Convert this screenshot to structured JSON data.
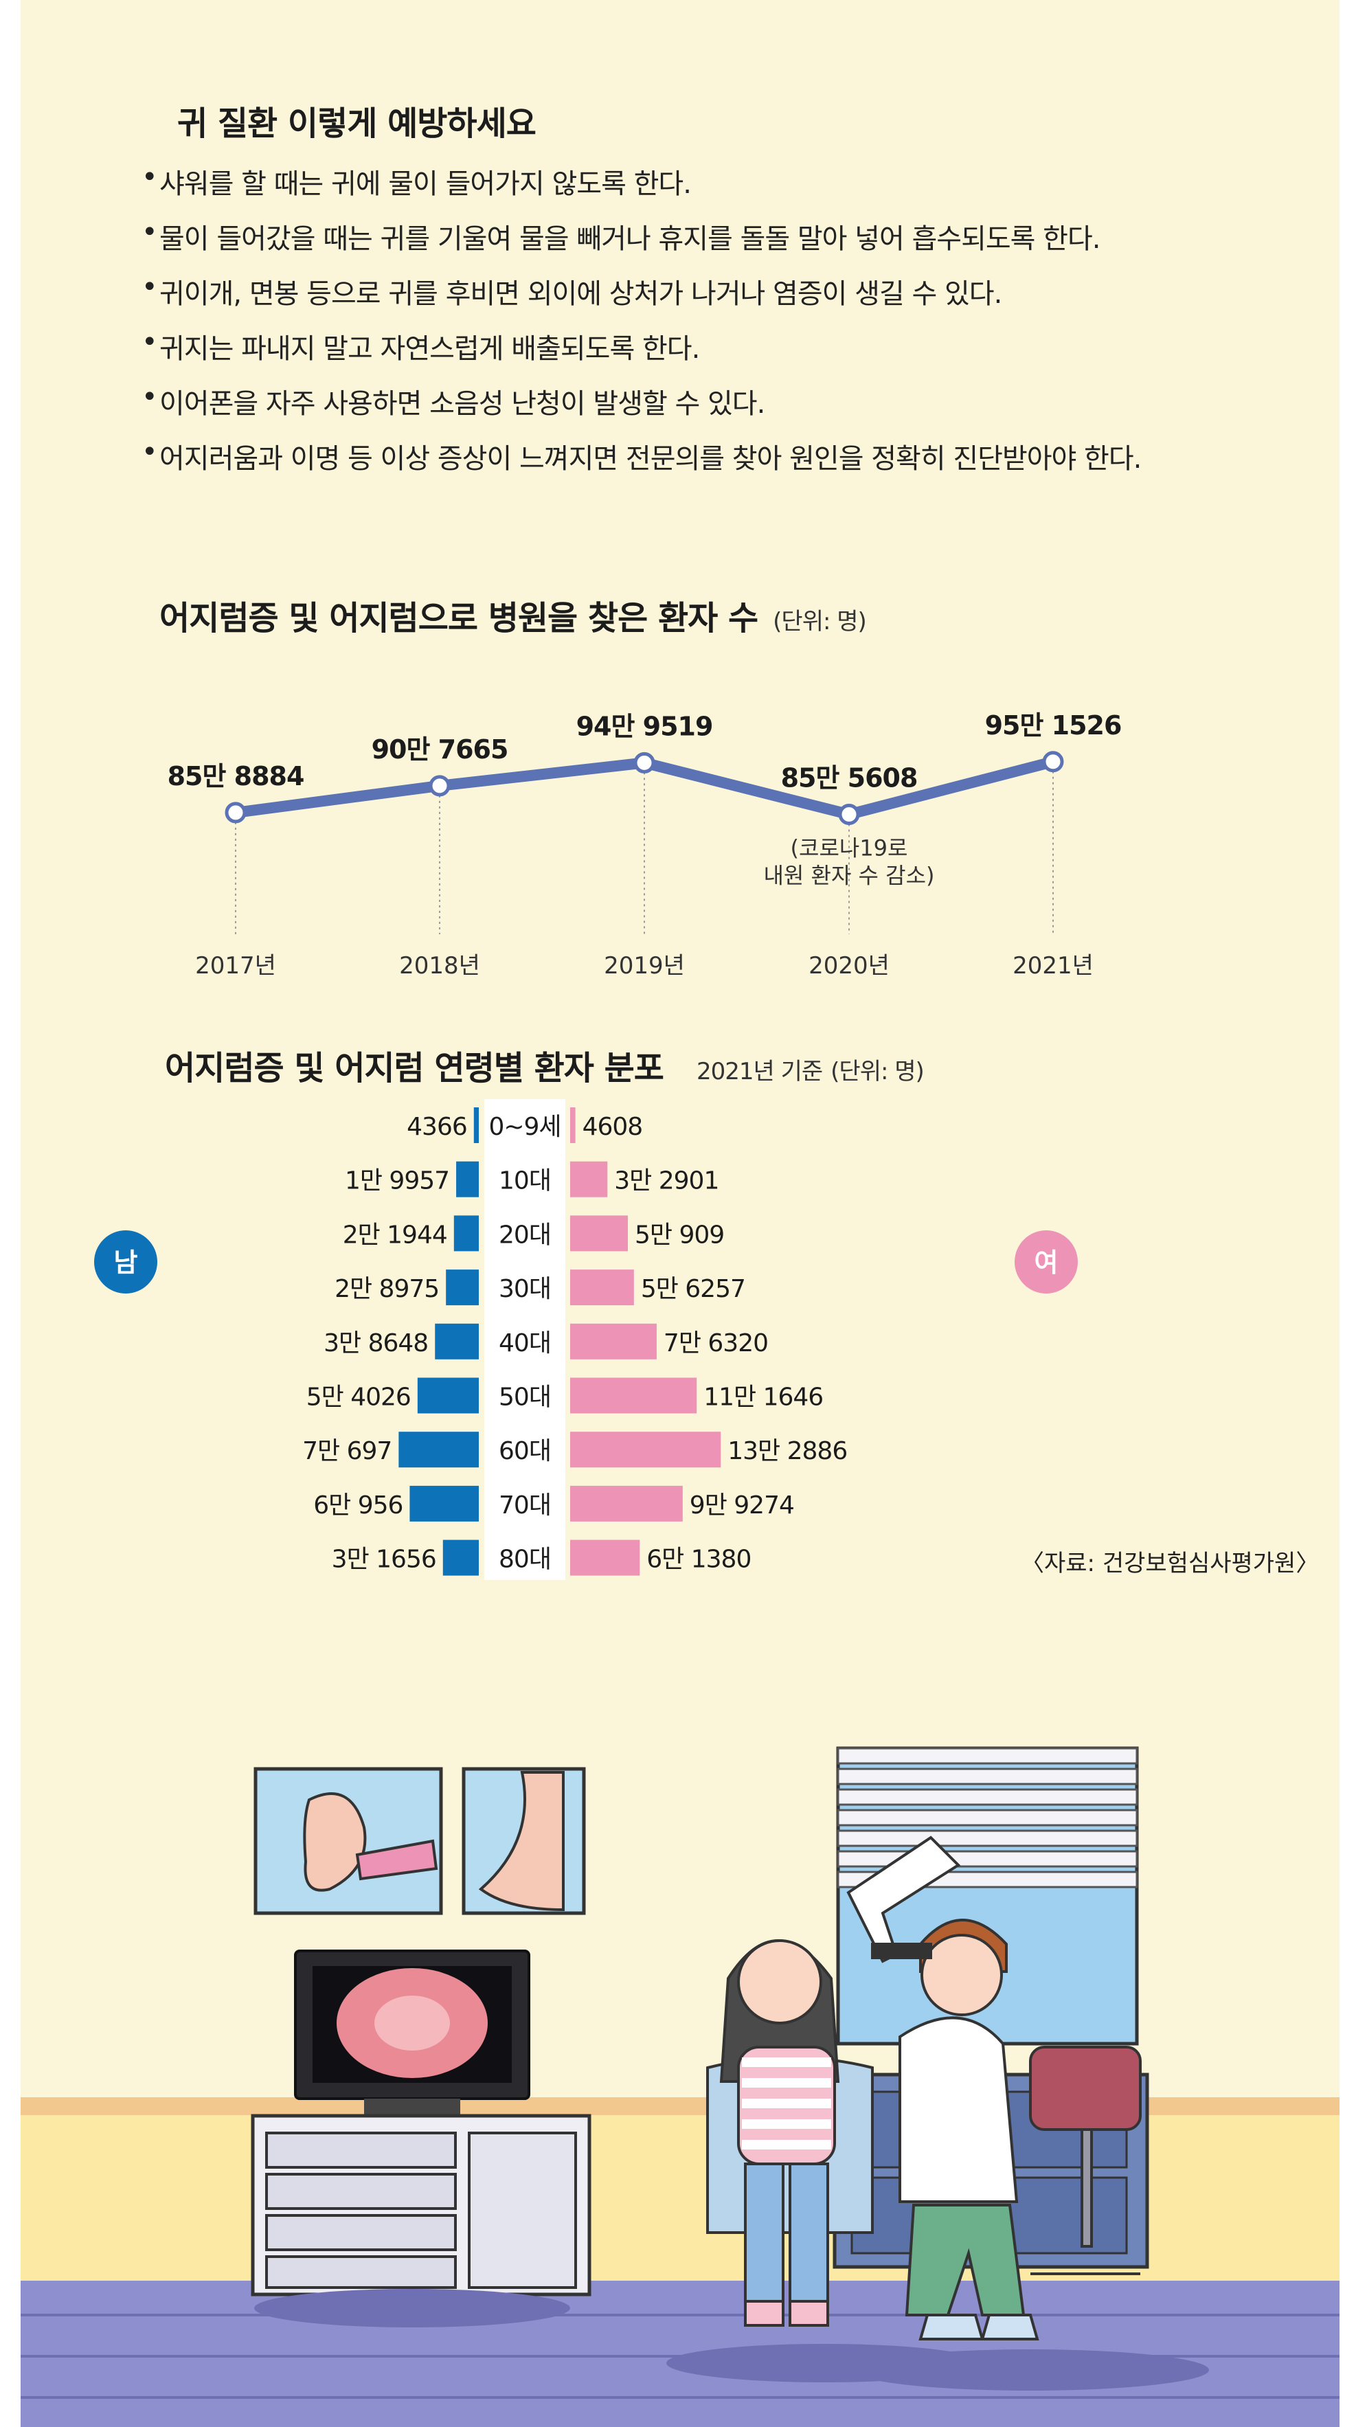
{
  "colors": {
    "background": "#fbf6da",
    "male": "#0d72b7",
    "female": "#ec93b6",
    "line": "#5b73b4",
    "text": "#1c1c1c"
  },
  "prevention": {
    "title": "귀 질환 이렇게 예방하세요",
    "tips": [
      "샤워를 할 때는 귀에 물이 들어가지 않도록 한다.",
      "물이 들어갔을 때는 귀를 기울여 물을 빼거나 휴지를 돌돌 말아 넣어 흡수되도록 한다.",
      "귀이개, 면봉 등으로 귀를 후비면 외이에 상처가 나거나 염증이 생길 수 있다.",
      "귀지는 파내지 말고 자연스럽게 배출되도록 한다.",
      "이어폰을 자주 사용하면 소음성 난청이 발생할 수 있다.",
      "어지러움과 이명 등 이상 증상이 느껴지면 전문의를 찾아 원인을 정확히 진단받아야 한다."
    ]
  },
  "chart_data": [
    {
      "type": "line",
      "title": "어지럼증 및 어지럼으로 병원을 찾은 환자 수",
      "unit": "(단위: 명)",
      "categories": [
        "2017년",
        "2018년",
        "2019년",
        "2020년",
        "2021년"
      ],
      "values": [
        858884,
        907665,
        949519,
        855608,
        951526
      ],
      "value_labels": [
        "85만 8884",
        "90만 7665",
        "94만 9519",
        "85만 5608",
        "95만 1526"
      ],
      "ylim": [
        800000,
        1000000
      ],
      "annotation": [
        "(코로나19로",
        "내원 환자 수 감소)"
      ]
    },
    {
      "type": "bar",
      "title": "어지럼증 및 어지럼 연령별 환자 분포",
      "basis": "2021년 기준",
      "unit": "(단위: 명)",
      "categories": [
        "0~9세",
        "10대",
        "20대",
        "30대",
        "40대",
        "50대",
        "60대",
        "70대",
        "80대"
      ],
      "series": [
        {
          "name": "남",
          "values": [
            4366,
            19957,
            21944,
            28975,
            38648,
            54026,
            70697,
            60956,
            31656
          ],
          "labels": [
            "4366",
            "1만 9957",
            "2만 1944",
            "2만 8975",
            "3만 8648",
            "5만 4026",
            "7만 697",
            "6만 956",
            "3만 1656"
          ]
        },
        {
          "name": "여",
          "values": [
            4608,
            32901,
            50909,
            56257,
            76320,
            111646,
            132886,
            99274,
            61380
          ],
          "labels": [
            "4608",
            "3만 2901",
            "5만 909",
            "5만 6257",
            "7만 6320",
            "11만 1646",
            "13만 2886",
            "9만 9274",
            "6만 1380"
          ]
        }
      ],
      "source": "〈자료: 건강보험심사평가원〉"
    }
  ]
}
